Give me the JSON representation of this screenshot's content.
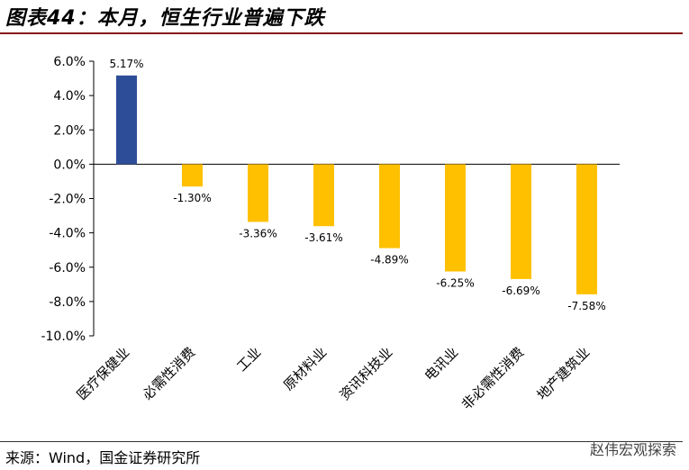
{
  "header": {
    "title": "图表44：本月，恒生行业普遍下跌"
  },
  "footer": {
    "source": "来源：Wind，国金证券研究所",
    "watermark": "赵伟宏观探索"
  },
  "colors": {
    "positive": "#2E4D99",
    "negative": "#FFC000",
    "rule": "#8a1a1a"
  },
  "chart_data": {
    "type": "bar",
    "title": "",
    "xlabel": "",
    "ylabel": "",
    "ylim": [
      -10,
      6
    ],
    "yticks": [
      6,
      4,
      2,
      0,
      -2,
      -4,
      -6,
      -8,
      -10
    ],
    "ytick_labels": [
      "6.0%",
      "4.0%",
      "2.0%",
      "0.0%",
      "-2.0%",
      "-4.0%",
      "-6.0%",
      "-8.0%",
      "-10.0%"
    ],
    "categories": [
      "医疗保健业",
      "必需性消费",
      "工业",
      "原材料业",
      "资讯科技业",
      "电讯业",
      "非必需性消费",
      "地产建筑业"
    ],
    "values": [
      5.17,
      -1.3,
      -3.36,
      -3.61,
      -4.89,
      -6.25,
      -6.69,
      -7.58
    ],
    "value_labels": [
      "5.17%",
      "-1.30%",
      "-3.36%",
      "-3.61%",
      "-4.89%",
      "-6.25%",
      "-6.69%",
      "-7.58%"
    ],
    "grid": false,
    "legend": "none"
  }
}
